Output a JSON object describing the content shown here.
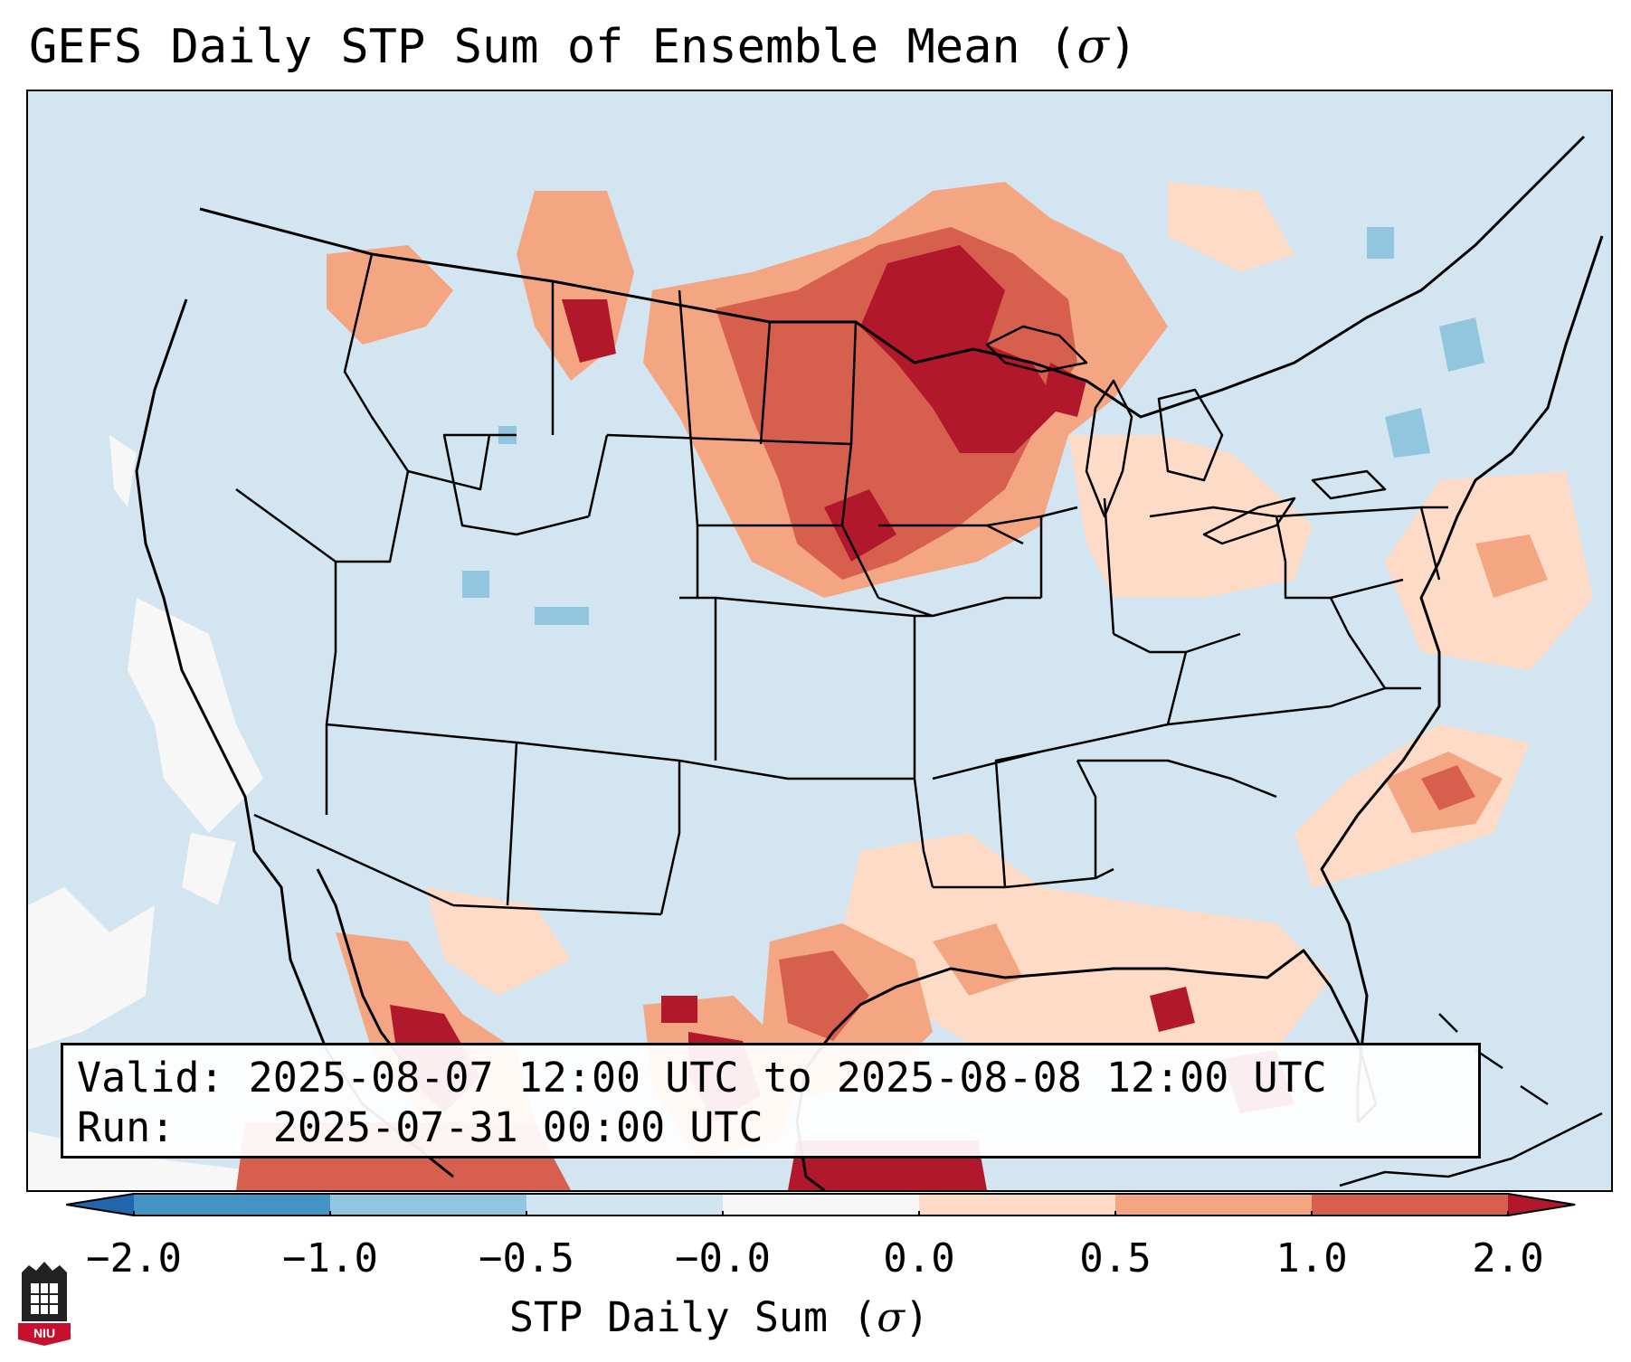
{
  "title": {
    "prefix": "GEFS Daily STP Sum of Ensemble Mean (",
    "symbol": "σ",
    "suffix": ")"
  },
  "info": {
    "valid_label": "Valid:",
    "valid_value": "2025-08-07 12:00 UTC to 2025-08-08 12:00 UTC",
    "run_label": "Run:",
    "run_value": "2025-07-31 00:00 UTC"
  },
  "colorbar": {
    "label_prefix": "STP Daily Sum (",
    "label_symbol": "σ",
    "label_suffix": ")",
    "ticks": [
      "−2.0",
      "−1.0",
      "−0.5",
      "−0.0",
      "0.0",
      "0.5",
      "1.0",
      "2.0"
    ],
    "colors": {
      "below_min": "#2166ac",
      "neg_2_to_neg_1": "#4393c3",
      "neg_1_to_neg_05": "#92c5de",
      "neg_05_to_0": "#d1e5f0",
      "zero_band": "#f7f7f7",
      "pos_0_to_05": "#fddbc7",
      "pos_05_to_1": "#f4a582",
      "pos_1_to_2": "#d6604d",
      "above_max": "#b2182b"
    }
  },
  "logo": {
    "text": "NIU"
  },
  "map_regions": [
    {
      "name": "upper-midwest",
      "level": "very_high"
    },
    {
      "name": "northern-plains",
      "level": "high"
    },
    {
      "name": "gulf-coast-texas",
      "level": "high"
    },
    {
      "name": "northern-mexico",
      "level": "high"
    },
    {
      "name": "western-atlantic",
      "level": "moderate"
    },
    {
      "name": "pacific-offshore",
      "level": "near_zero"
    }
  ]
}
